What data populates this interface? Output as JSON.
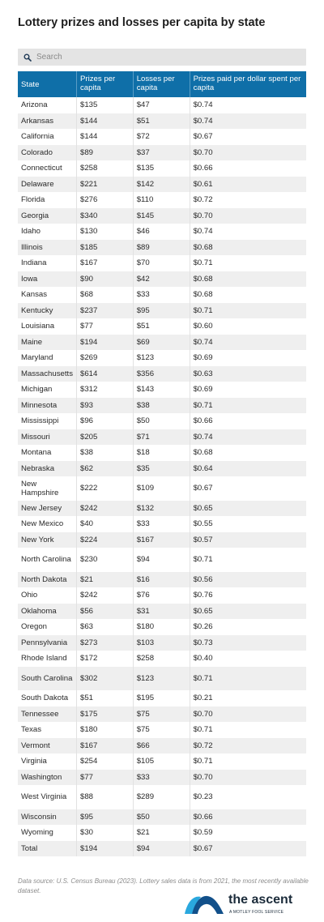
{
  "title": "Lottery prizes and losses per capita by state",
  "search": {
    "placeholder": "Search",
    "icon": "search-icon"
  },
  "table": {
    "headers": [
      "State",
      "Prizes per capita",
      "Losses per capita",
      "Prizes paid per dollar spent per capita"
    ],
    "rows": [
      [
        "Arizona",
        "$135",
        "$47",
        "$0.74"
      ],
      [
        "Arkansas",
        "$144",
        "$51",
        "$0.74"
      ],
      [
        "California",
        "$144",
        "$72",
        "$0.67"
      ],
      [
        "Colorado",
        "$89",
        "$37",
        "$0.70"
      ],
      [
        "Connecticut",
        "$258",
        "$135",
        "$0.66"
      ],
      [
        "Delaware",
        "$221",
        "$142",
        "$0.61"
      ],
      [
        "Florida",
        "$276",
        "$110",
        "$0.72"
      ],
      [
        "Georgia",
        "$340",
        "$145",
        "$0.70"
      ],
      [
        "Idaho",
        "$130",
        "$46",
        "$0.74"
      ],
      [
        "Illinois",
        "$185",
        "$89",
        "$0.68"
      ],
      [
        "Indiana",
        "$167",
        "$70",
        "$0.71"
      ],
      [
        "Iowa",
        "$90",
        "$42",
        "$0.68"
      ],
      [
        "Kansas",
        "$68",
        "$33",
        "$0.68"
      ],
      [
        "Kentucky",
        "$237",
        "$95",
        "$0.71"
      ],
      [
        "Louisiana",
        "$77",
        "$51",
        "$0.60"
      ],
      [
        "Maine",
        "$194",
        "$69",
        "$0.74"
      ],
      [
        "Maryland",
        "$269",
        "$123",
        "$0.69"
      ],
      [
        "Massachusetts",
        "$614",
        "$356",
        "$0.63"
      ],
      [
        "Michigan",
        "$312",
        "$143",
        "$0.69"
      ],
      [
        "Minnesota",
        "$93",
        "$38",
        "$0.71"
      ],
      [
        "Mississippi",
        "$96",
        "$50",
        "$0.66"
      ],
      [
        "Missouri",
        "$205",
        "$71",
        "$0.74"
      ],
      [
        "Montana",
        "$38",
        "$18",
        "$0.68"
      ],
      [
        "Nebraska",
        "$62",
        "$35",
        "$0.64"
      ],
      [
        "New Hampshire",
        "$222",
        "$109",
        "$0.67"
      ],
      [
        "New Jersey",
        "$242",
        "$132",
        "$0.65"
      ],
      [
        "New Mexico",
        "$40",
        "$33",
        "$0.55"
      ],
      [
        "New York",
        "$224",
        "$167",
        "$0.57"
      ],
      [
        "North Carolina",
        "$230",
        "$94",
        "$0.71"
      ],
      [
        "North Dakota",
        "$21",
        "$16",
        "$0.56"
      ],
      [
        "Ohio",
        "$242",
        "$76",
        "$0.76"
      ],
      [
        "Oklahoma",
        "$56",
        "$31",
        "$0.65"
      ],
      [
        "Oregon",
        "$63",
        "$180",
        "$0.26"
      ],
      [
        "Pennsylvania",
        "$273",
        "$103",
        "$0.73"
      ],
      [
        "Rhode Island",
        "$172",
        "$258",
        "$0.40"
      ],
      [
        "South Carolina",
        "$302",
        "$123",
        "$0.71"
      ],
      [
        "South Dakota",
        "$51",
        "$195",
        "$0.21"
      ],
      [
        "Tennessee",
        "$175",
        "$75",
        "$0.70"
      ],
      [
        "Texas",
        "$180",
        "$75",
        "$0.71"
      ],
      [
        "Vermont",
        "$167",
        "$66",
        "$0.72"
      ],
      [
        "Virginia",
        "$254",
        "$105",
        "$0.71"
      ],
      [
        "Washington",
        "$77",
        "$33",
        "$0.70"
      ],
      [
        "West Virginia",
        "$88",
        "$289",
        "$0.23"
      ],
      [
        "Wisconsin",
        "$95",
        "$50",
        "$0.66"
      ],
      [
        "Wyoming",
        "$30",
        "$21",
        "$0.59"
      ],
      [
        "Total",
        "$194",
        "$94",
        "$0.67"
      ]
    ]
  },
  "source": "Data source: U.S. Census Bureau (2023). Lottery sales data is from 2021, the most recently available dataset.",
  "logo": {
    "wordmark": "the ascent",
    "tagline": "A MOTLEY FOOL SERVICE",
    "icon": "the-ascent-logo-icon",
    "colors": {
      "light": "#2aa8de",
      "dark": "#12508a",
      "text": "#1b2b3a"
    }
  },
  "colors": {
    "header_bg": "#0f6fa8",
    "stripe_bg": "#efefef",
    "search_bg": "#e4e4e4"
  }
}
